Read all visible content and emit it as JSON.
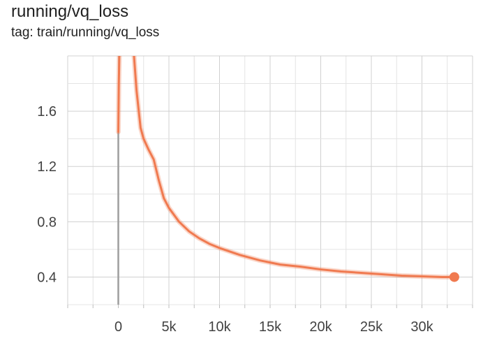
{
  "chart": {
    "title": "running/vq_loss",
    "subtitle": "tag: train/running/vq_loss"
  },
  "chart_data": {
    "type": "line",
    "title": "running/vq_loss",
    "subtitle": "tag: train/running/vq_loss",
    "xlabel": "",
    "ylabel": "",
    "xlim": [
      -5000,
      35000
    ],
    "ylim": [
      0.2,
      2.0
    ],
    "x_ticks": [
      0,
      5000,
      10000,
      15000,
      20000,
      25000,
      30000
    ],
    "x_tick_labels": [
      "0",
      "5k",
      "10k",
      "15k",
      "20k",
      "25k",
      "30k"
    ],
    "y_ticks": [
      0.4,
      0.8,
      1.2,
      1.6
    ],
    "y_tick_labels": [
      "0.4",
      "0.8",
      "1.2",
      "1.6"
    ],
    "grid": true,
    "line_color": "#f07a50",
    "series": [
      {
        "x": [
          0,
          50,
          100,
          200,
          1500,
          1800,
          2200,
          2500,
          3000,
          3500,
          4000,
          4500,
          5000,
          6000,
          7000,
          8000,
          9000,
          10000,
          12000,
          14000,
          16000,
          18000,
          20000,
          22000,
          24000,
          26000,
          28000,
          30000,
          32000,
          33200
        ],
        "y": [
          1.45,
          1.8,
          2.0,
          2.05,
          2.05,
          1.75,
          1.48,
          1.4,
          1.32,
          1.25,
          1.1,
          0.97,
          0.9,
          0.8,
          0.73,
          0.68,
          0.64,
          0.61,
          0.56,
          0.52,
          0.49,
          0.475,
          0.455,
          0.44,
          0.43,
          0.42,
          0.41,
          0.405,
          0.4,
          0.4
        ]
      }
    ]
  }
}
